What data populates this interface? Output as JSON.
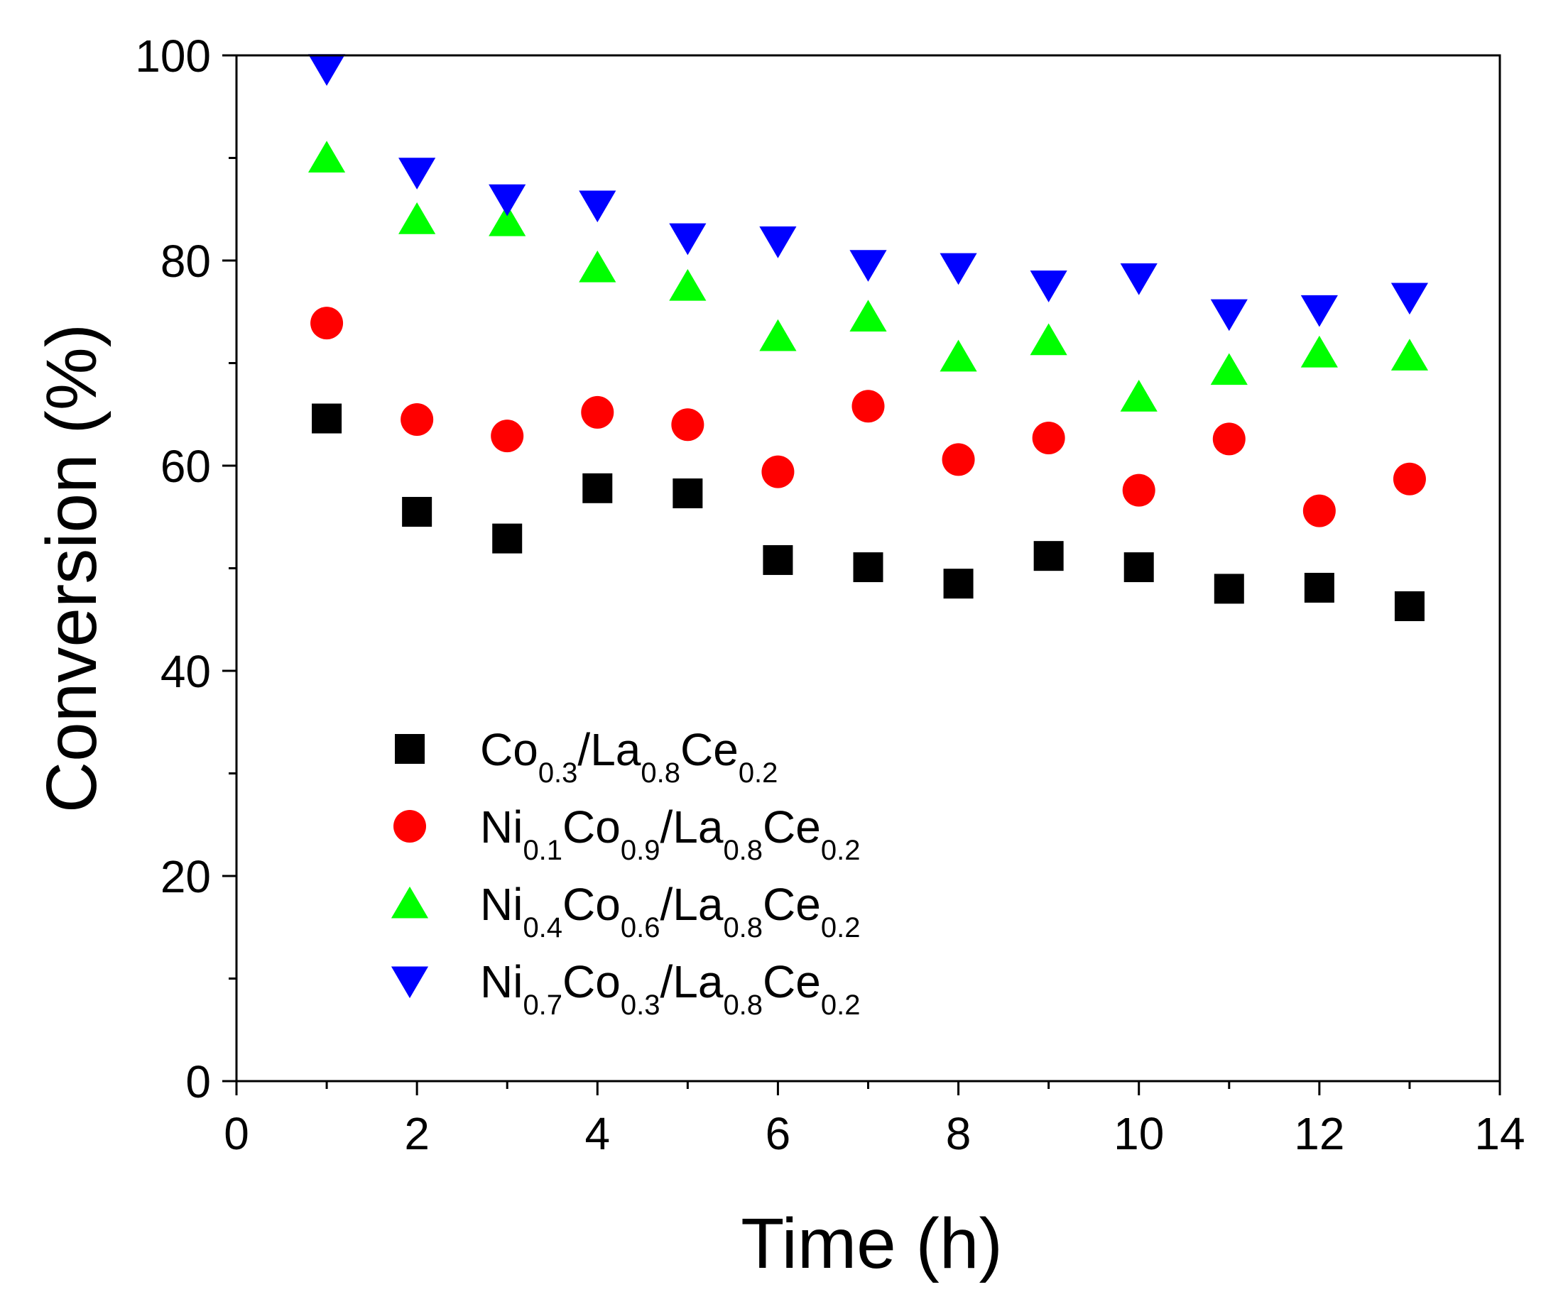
{
  "chart_data": {
    "type": "scatter",
    "title": "",
    "xlabel": "Time (h)",
    "ylabel": "Conversion (%)",
    "xlim": [
      0,
      14
    ],
    "ylim": [
      0,
      100
    ],
    "x_ticks": [
      0,
      2,
      4,
      6,
      8,
      10,
      12,
      14
    ],
    "y_ticks": [
      0,
      20,
      40,
      60,
      80,
      100
    ],
    "x_tick_labels": [
      "0",
      "2",
      "4",
      "6",
      "8",
      "10",
      "12",
      "14"
    ],
    "y_tick_labels": [
      "0",
      "20",
      "40",
      "60",
      "80",
      "100"
    ],
    "grid": false,
    "legend_position": "lower-left",
    "x": [
      1,
      2,
      3,
      4,
      5,
      6,
      7,
      8,
      9,
      10,
      11,
      12,
      13
    ],
    "series": [
      {
        "name": "Co0.3/La0.8Ce0.2",
        "label_parts": [
          {
            "text": "Co",
            "sub": "0.3"
          },
          {
            "text": "/La",
            "sub": "0.8"
          },
          {
            "text": "Ce",
            "sub": "0.2"
          }
        ],
        "marker": "square",
        "color": "#000000",
        "values": [
          64.6,
          55.5,
          52.9,
          57.8,
          57.3,
          50.8,
          50.1,
          48.5,
          51.2,
          50.1,
          48.0,
          48.1,
          46.3
        ]
      },
      {
        "name": "Ni0.1Co0.9/La0.8Ce0.2",
        "label_parts": [
          {
            "text": "Ni",
            "sub": "0.1"
          },
          {
            "text": "Co",
            "sub": "0.9"
          },
          {
            "text": "/La",
            "sub": "0.8"
          },
          {
            "text": "Ce",
            "sub": "0.2"
          }
        ],
        "marker": "circle",
        "color": "#ff0000",
        "values": [
          73.9,
          64.5,
          62.9,
          65.2,
          64.0,
          59.4,
          65.8,
          60.6,
          62.7,
          57.6,
          62.6,
          55.6,
          58.7
        ]
      },
      {
        "name": "Ni0.4Co0.6/La0.8Ce0.2",
        "label_parts": [
          {
            "text": "Ni",
            "sub": "0.4"
          },
          {
            "text": "Co",
            "sub": "0.6"
          },
          {
            "text": "/La",
            "sub": "0.8"
          },
          {
            "text": "Ce",
            "sub": "0.2"
          }
        ],
        "marker": "triangle-up",
        "color": "#00ff00",
        "values": [
          90.0,
          84.0,
          83.8,
          79.3,
          77.5,
          72.6,
          74.5,
          70.6,
          72.2,
          66.7,
          69.3,
          71.0,
          70.7
        ]
      },
      {
        "name": "Ni0.7Co0.3/La0.8Ce0.2",
        "label_parts": [
          {
            "text": "Ni",
            "sub": "0.7"
          },
          {
            "text": "Co",
            "sub": "0.3"
          },
          {
            "text": "/La",
            "sub": "0.8"
          },
          {
            "text": "Ce",
            "sub": "0.2"
          }
        ],
        "marker": "triangle-down",
        "color": "#0000ff",
        "values": [
          98.7,
          88.6,
          86.0,
          85.4,
          82.2,
          81.9,
          79.6,
          79.3,
          77.6,
          78.3,
          74.8,
          75.2,
          76.4
        ]
      }
    ]
  }
}
